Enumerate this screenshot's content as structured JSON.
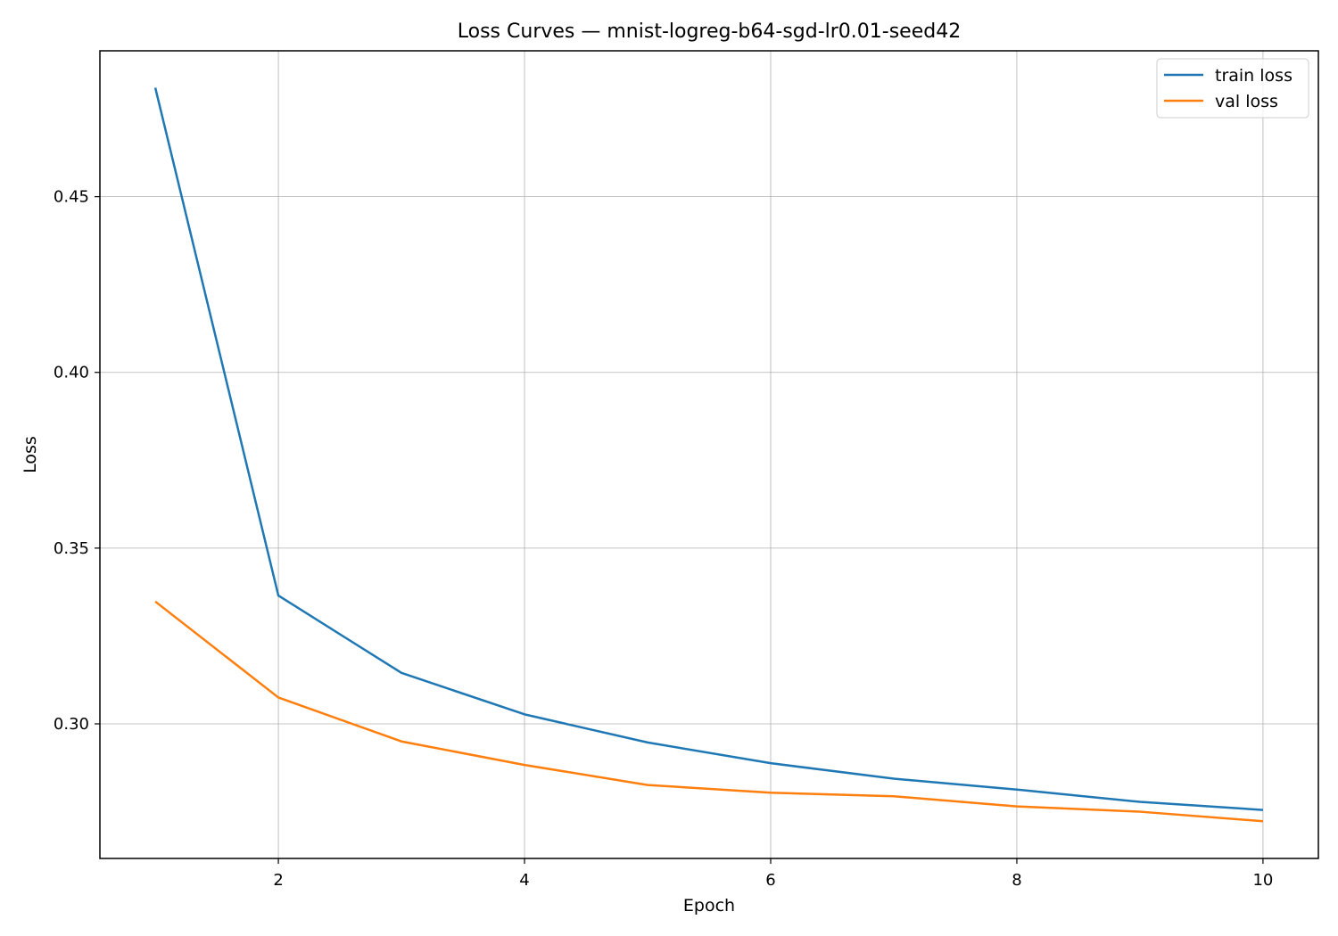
{
  "chart_data": {
    "type": "line",
    "title": "Loss Curves — mnist-logreg-b64-sgd-lr0.01-seed42",
    "xlabel": "Epoch",
    "ylabel": "Loss",
    "x": [
      1,
      2,
      3,
      4,
      5,
      6,
      7,
      8,
      9,
      10
    ],
    "xlim": [
      0.55,
      10.45
    ],
    "ylim": [
      0.2617,
      0.4915
    ],
    "xticks": [
      2,
      4,
      6,
      8,
      10
    ],
    "xtick_labels": [
      "2",
      "4",
      "6",
      "8",
      "10"
    ],
    "yticks": [
      0.3,
      0.35,
      0.4,
      0.45
    ],
    "ytick_labels": [
      "0.30",
      "0.35",
      "0.40",
      "0.45"
    ],
    "grid": true,
    "legend_position": "top-right",
    "series": [
      {
        "name": "train loss",
        "color": "#1f77b4",
        "values": [
          0.481,
          0.3365,
          0.3145,
          0.3027,
          0.2947,
          0.2888,
          0.2844,
          0.2813,
          0.2778,
          0.2755
        ]
      },
      {
        "name": "val loss",
        "color": "#ff7f0e",
        "values": [
          0.3348,
          0.3075,
          0.295,
          0.2883,
          0.2826,
          0.2804,
          0.2794,
          0.2765,
          0.275,
          0.2723
        ]
      }
    ]
  }
}
